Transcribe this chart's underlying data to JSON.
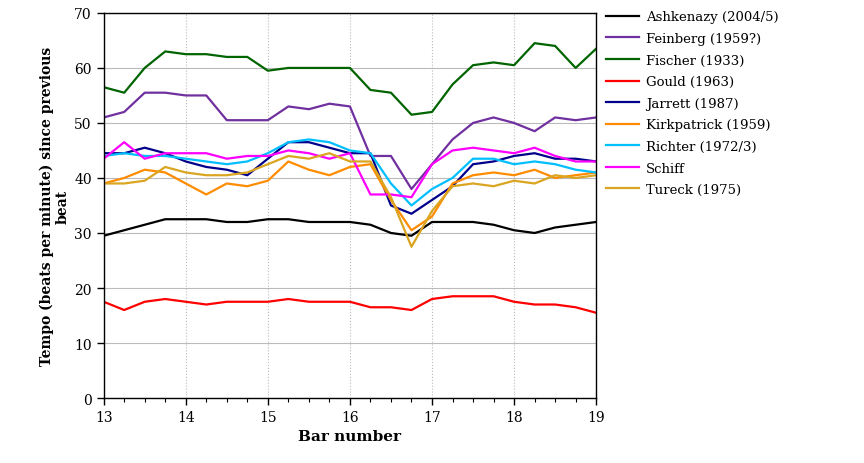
{
  "xlabel": "Bar number",
  "ylabel": "Tempo (beats per minute) since previous\nbeat",
  "xlim": [
    13,
    19
  ],
  "ylim": [
    0,
    70
  ],
  "yticks": [
    0,
    10,
    20,
    30,
    40,
    50,
    60,
    70
  ],
  "xticks": [
    13,
    14,
    15,
    16,
    17,
    18,
    19
  ],
  "series": [
    {
      "label": "Ashkenazy (2004/5)",
      "color": "#000000",
      "linewidth": 1.6,
      "data_x": [
        13.0,
        13.25,
        13.5,
        13.75,
        14.0,
        14.25,
        14.5,
        14.75,
        15.0,
        15.25,
        15.5,
        15.75,
        16.0,
        16.25,
        16.5,
        16.75,
        17.0,
        17.25,
        17.5,
        17.75,
        18.0,
        18.25,
        18.5,
        18.75,
        19.0
      ],
      "data_y": [
        29.5,
        30.5,
        31.5,
        32.5,
        32.5,
        32.5,
        32.0,
        32.0,
        32.5,
        32.5,
        32.0,
        32.0,
        32.0,
        31.5,
        30.0,
        29.5,
        32.0,
        32.0,
        32.0,
        31.5,
        30.5,
        30.0,
        31.0,
        31.5,
        32.0
      ]
    },
    {
      "label": "Feinberg (1959?)",
      "color": "#7030A0",
      "linewidth": 1.6,
      "data_x": [
        13.0,
        13.25,
        13.5,
        13.75,
        14.0,
        14.25,
        14.5,
        14.75,
        15.0,
        15.25,
        15.5,
        15.75,
        16.0,
        16.25,
        16.5,
        16.75,
        17.0,
        17.25,
        17.5,
        17.75,
        18.0,
        18.25,
        18.5,
        18.75,
        19.0
      ],
      "data_y": [
        51.0,
        52.0,
        55.5,
        55.5,
        55.0,
        55.0,
        50.5,
        50.5,
        50.5,
        53.0,
        52.5,
        53.5,
        53.0,
        44.0,
        44.0,
        38.0,
        42.5,
        47.0,
        50.0,
        51.0,
        50.0,
        48.5,
        51.0,
        50.5,
        51.0
      ]
    },
    {
      "label": "Fischer (1933)",
      "color": "#006400",
      "linewidth": 1.6,
      "data_x": [
        13.0,
        13.25,
        13.5,
        13.75,
        14.0,
        14.25,
        14.5,
        14.75,
        15.0,
        15.25,
        15.5,
        15.75,
        16.0,
        16.25,
        16.5,
        16.75,
        17.0,
        17.25,
        17.5,
        17.75,
        18.0,
        18.25,
        18.5,
        18.75,
        19.0
      ],
      "data_y": [
        56.5,
        55.5,
        60.0,
        63.0,
        62.5,
        62.5,
        62.0,
        62.0,
        59.5,
        60.0,
        60.0,
        60.0,
        60.0,
        56.0,
        55.5,
        51.5,
        52.0,
        57.0,
        60.5,
        61.0,
        60.5,
        64.5,
        64.0,
        60.0,
        63.5
      ]
    },
    {
      "label": "Gould (1963)",
      "color": "#FF0000",
      "linewidth": 1.6,
      "data_x": [
        13.0,
        13.25,
        13.5,
        13.75,
        14.0,
        14.25,
        14.5,
        14.75,
        15.0,
        15.25,
        15.5,
        15.75,
        16.0,
        16.25,
        16.5,
        16.75,
        17.0,
        17.25,
        17.5,
        17.75,
        18.0,
        18.25,
        18.5,
        18.75,
        19.0
      ],
      "data_y": [
        17.5,
        16.0,
        17.5,
        18.0,
        17.5,
        17.0,
        17.5,
        17.5,
        17.5,
        18.0,
        17.5,
        17.5,
        17.5,
        16.5,
        16.5,
        16.0,
        18.0,
        18.5,
        18.5,
        18.5,
        17.5,
        17.0,
        17.0,
        16.5,
        15.5
      ]
    },
    {
      "label": "Jarrett (1987)",
      "color": "#00008B",
      "linewidth": 1.6,
      "data_x": [
        13.0,
        13.25,
        13.5,
        13.75,
        14.0,
        14.25,
        14.5,
        14.75,
        15.0,
        15.25,
        15.5,
        15.75,
        16.0,
        16.25,
        16.5,
        16.75,
        17.0,
        17.25,
        17.5,
        17.75,
        18.0,
        18.25,
        18.5,
        18.75,
        19.0
      ],
      "data_y": [
        44.5,
        44.5,
        45.5,
        44.5,
        43.0,
        42.0,
        41.5,
        40.5,
        43.5,
        46.5,
        46.5,
        45.5,
        44.5,
        44.5,
        35.0,
        33.5,
        36.0,
        38.5,
        42.5,
        43.0,
        44.0,
        44.5,
        43.5,
        43.5,
        43.0
      ]
    },
    {
      "label": "Kirkpatrick (1959)",
      "color": "#FF8C00",
      "linewidth": 1.6,
      "data_x": [
        13.0,
        13.25,
        13.5,
        13.75,
        14.0,
        14.25,
        14.5,
        14.75,
        15.0,
        15.25,
        15.5,
        15.75,
        16.0,
        16.25,
        16.5,
        16.75,
        17.0,
        17.25,
        17.5,
        17.75,
        18.0,
        18.25,
        18.5,
        18.75,
        19.0
      ],
      "data_y": [
        39.0,
        40.0,
        41.5,
        41.0,
        39.0,
        37.0,
        39.0,
        38.5,
        39.5,
        43.0,
        41.5,
        40.5,
        42.0,
        42.5,
        36.0,
        30.5,
        33.0,
        39.0,
        40.5,
        41.0,
        40.5,
        41.5,
        40.0,
        40.5,
        41.0
      ]
    },
    {
      "label": "Richter (1972/3)",
      "color": "#00BFFF",
      "linewidth": 1.6,
      "data_x": [
        13.0,
        13.25,
        13.5,
        13.75,
        14.0,
        14.25,
        14.5,
        14.75,
        15.0,
        15.25,
        15.5,
        15.75,
        16.0,
        16.25,
        16.5,
        16.75,
        17.0,
        17.25,
        17.5,
        17.75,
        18.0,
        18.25,
        18.5,
        18.75,
        19.0
      ],
      "data_y": [
        44.0,
        44.5,
        44.0,
        44.0,
        43.5,
        43.0,
        42.5,
        43.0,
        44.5,
        46.5,
        47.0,
        46.5,
        45.0,
        44.5,
        39.0,
        35.0,
        38.0,
        40.0,
        43.5,
        43.5,
        42.5,
        43.0,
        42.5,
        41.5,
        41.0
      ]
    },
    {
      "label": "Schiff",
      "color": "#FF00FF",
      "linewidth": 1.6,
      "data_x": [
        13.0,
        13.25,
        13.5,
        13.75,
        14.0,
        14.25,
        14.5,
        14.75,
        15.0,
        15.25,
        15.5,
        15.75,
        16.0,
        16.25,
        16.5,
        16.75,
        17.0,
        17.25,
        17.5,
        17.75,
        18.0,
        18.25,
        18.5,
        18.75,
        19.0
      ],
      "data_y": [
        43.5,
        46.5,
        43.5,
        44.5,
        44.5,
        44.5,
        43.5,
        44.0,
        44.0,
        45.0,
        44.5,
        43.5,
        44.5,
        37.0,
        37.0,
        36.5,
        42.5,
        45.0,
        45.5,
        45.0,
        44.5,
        45.5,
        44.0,
        43.0,
        43.0
      ]
    },
    {
      "label": "Tureck (1975)",
      "color": "#DAA520",
      "linewidth": 1.6,
      "data_x": [
        13.0,
        13.25,
        13.5,
        13.75,
        14.0,
        14.25,
        14.5,
        14.75,
        15.0,
        15.25,
        15.5,
        15.75,
        16.0,
        16.25,
        16.5,
        16.75,
        17.0,
        17.25,
        17.5,
        17.75,
        18.0,
        18.25,
        18.5,
        18.75,
        19.0
      ],
      "data_y": [
        39.0,
        39.0,
        39.5,
        42.0,
        41.0,
        40.5,
        40.5,
        41.0,
        42.5,
        44.0,
        43.5,
        44.5,
        43.0,
        43.0,
        36.5,
        27.5,
        34.0,
        38.5,
        39.0,
        38.5,
        39.5,
        39.0,
        40.5,
        40.0,
        40.5
      ]
    }
  ]
}
